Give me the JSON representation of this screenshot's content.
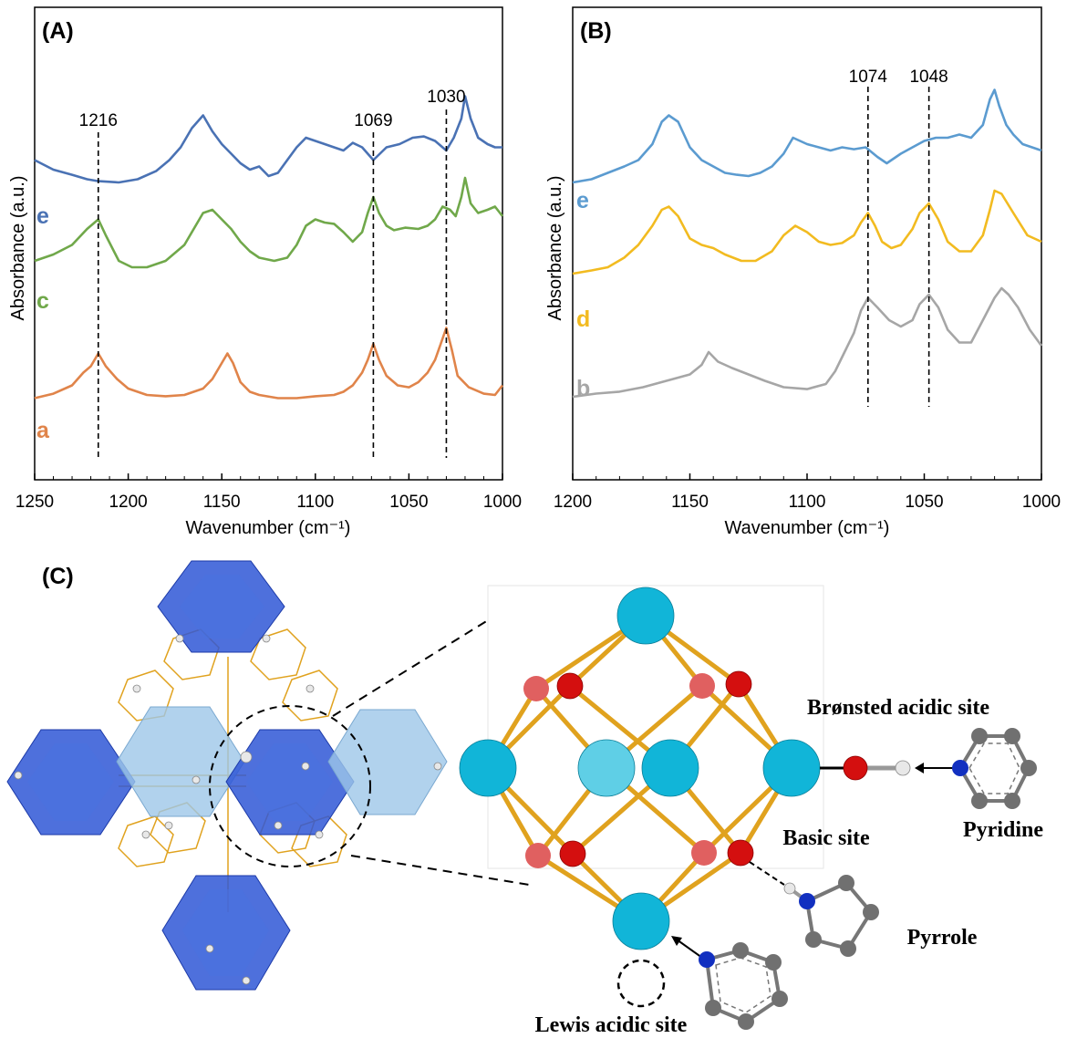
{
  "chart_data": [
    {
      "panel": "(A)",
      "type": "line",
      "xlabel": "Wavenumber (cm⁻¹)",
      "ylabel": "Absorbance (a.u.)",
      "xlim": [
        1250,
        1000
      ],
      "xticks": [
        "1250",
        "1200",
        "1150",
        "1100",
        "1050",
        "1000"
      ],
      "markers": [
        {
          "x": 1216,
          "label": "1216"
        },
        {
          "x": 1069,
          "label": "1069"
        },
        {
          "x": 1030,
          "label": "1030"
        }
      ],
      "series": [
        {
          "name": "e",
          "color": "#4a72b4",
          "offset": 2.6,
          "x": [
            1250,
            1240,
            1230,
            1222,
            1216,
            1205,
            1195,
            1185,
            1178,
            1172,
            1166,
            1160,
            1155,
            1150,
            1145,
            1140,
            1135,
            1130,
            1125,
            1120,
            1115,
            1110,
            1105,
            1100,
            1095,
            1090,
            1085,
            1080,
            1075,
            1069,
            1062,
            1055,
            1048,
            1042,
            1036,
            1030,
            1026,
            1022,
            1020,
            1017,
            1013,
            1008,
            1004,
            1000
          ],
          "values": [
            0.35,
            0.2,
            0.12,
            0.05,
            0.02,
            0.0,
            0.05,
            0.18,
            0.35,
            0.55,
            0.85,
            1.05,
            0.8,
            0.6,
            0.45,
            0.3,
            0.2,
            0.25,
            0.1,
            0.15,
            0.35,
            0.55,
            0.7,
            0.65,
            0.6,
            0.55,
            0.5,
            0.62,
            0.55,
            0.35,
            0.55,
            0.6,
            0.7,
            0.72,
            0.65,
            0.5,
            0.7,
            1.0,
            1.35,
            1.0,
            0.7,
            0.6,
            0.55,
            0.55
          ]
        },
        {
          "name": "c",
          "color": "#70a84a",
          "offset": 1.35,
          "x": [
            1250,
            1240,
            1230,
            1222,
            1216,
            1212,
            1205,
            1198,
            1190,
            1180,
            1170,
            1160,
            1155,
            1150,
            1145,
            1140,
            1135,
            1130,
            1122,
            1115,
            1110,
            1105,
            1100,
            1095,
            1090,
            1085,
            1080,
            1075,
            1072,
            1069,
            1066,
            1062,
            1058,
            1052,
            1045,
            1040,
            1036,
            1032,
            1028,
            1025,
            1022,
            1020,
            1017,
            1013,
            1008,
            1004,
            1000
          ],
          "values": [
            0.2,
            0.3,
            0.45,
            0.7,
            0.85,
            0.6,
            0.2,
            0.1,
            0.1,
            0.2,
            0.45,
            0.95,
            1.0,
            0.85,
            0.7,
            0.5,
            0.35,
            0.25,
            0.2,
            0.25,
            0.45,
            0.75,
            0.85,
            0.8,
            0.78,
            0.65,
            0.5,
            0.65,
            0.95,
            1.2,
            0.95,
            0.75,
            0.68,
            0.72,
            0.7,
            0.75,
            0.85,
            1.05,
            1.0,
            0.9,
            1.2,
            1.5,
            1.1,
            0.95,
            1.0,
            1.05,
            0.9
          ]
        },
        {
          "name": "a",
          "color": "#e0844a",
          "offset": 0.0,
          "x": [
            1250,
            1240,
            1230,
            1224,
            1220,
            1216,
            1212,
            1206,
            1200,
            1190,
            1180,
            1170,
            1160,
            1155,
            1150,
            1147,
            1144,
            1140,
            1135,
            1130,
            1120,
            1110,
            1100,
            1090,
            1085,
            1080,
            1075,
            1072,
            1069,
            1066,
            1062,
            1056,
            1050,
            1045,
            1040,
            1036,
            1033,
            1030,
            1027,
            1024,
            1018,
            1010,
            1004,
            1000
          ],
          "values": [
            0.05,
            0.12,
            0.25,
            0.45,
            0.55,
            0.75,
            0.55,
            0.35,
            0.2,
            0.1,
            0.08,
            0.1,
            0.2,
            0.35,
            0.6,
            0.75,
            0.6,
            0.3,
            0.15,
            0.1,
            0.05,
            0.05,
            0.08,
            0.1,
            0.15,
            0.25,
            0.45,
            0.65,
            0.9,
            0.65,
            0.4,
            0.25,
            0.22,
            0.3,
            0.45,
            0.65,
            0.9,
            1.15,
            0.8,
            0.4,
            0.22,
            0.12,
            0.1,
            0.25
          ]
        }
      ]
    },
    {
      "panel": "(B)",
      "type": "line",
      "xlabel": "Wavenumber (cm⁻¹)",
      "ylabel": "Absorbance (a.u.)",
      "xlim": [
        1200,
        1000
      ],
      "xticks": [
        "1200",
        "1150",
        "1100",
        "1050",
        "1000"
      ],
      "markers": [
        {
          "x": 1074,
          "label": "1074"
        },
        {
          "x": 1048,
          "label": "1048"
        }
      ],
      "series": [
        {
          "name": "e",
          "color": "#5b9bd0",
          "offset": 2.6,
          "x": [
            1200,
            1192,
            1185,
            1178,
            1172,
            1166,
            1162,
            1159,
            1155,
            1150,
            1145,
            1140,
            1135,
            1130,
            1125,
            1120,
            1115,
            1110,
            1106,
            1100,
            1095,
            1090,
            1085,
            1080,
            1075,
            1070,
            1066,
            1060,
            1055,
            1050,
            1045,
            1040,
            1035,
            1030,
            1025,
            1022,
            1020,
            1018,
            1015,
            1012,
            1008,
            1004,
            1000
          ],
          "values": [
            0.0,
            0.05,
            0.15,
            0.25,
            0.35,
            0.6,
            0.95,
            1.05,
            0.95,
            0.55,
            0.35,
            0.25,
            0.15,
            0.12,
            0.1,
            0.15,
            0.25,
            0.45,
            0.7,
            0.6,
            0.55,
            0.5,
            0.55,
            0.52,
            0.55,
            0.4,
            0.3,
            0.45,
            0.55,
            0.65,
            0.7,
            0.7,
            0.75,
            0.7,
            0.9,
            1.3,
            1.45,
            1.2,
            0.9,
            0.75,
            0.6,
            0.55,
            0.5
          ]
        },
        {
          "name": "d",
          "color": "#f2bb20",
          "offset": 1.35,
          "x": [
            1200,
            1192,
            1185,
            1178,
            1172,
            1166,
            1162,
            1159,
            1155,
            1150,
            1145,
            1140,
            1135,
            1128,
            1122,
            1115,
            1110,
            1105,
            1100,
            1095,
            1090,
            1085,
            1080,
            1077,
            1074,
            1071,
            1068,
            1064,
            1060,
            1055,
            1052,
            1048,
            1044,
            1040,
            1035,
            1030,
            1025,
            1022,
            1020,
            1017,
            1012,
            1006,
            1000
          ],
          "values": [
            0.0,
            0.05,
            0.1,
            0.25,
            0.45,
            0.75,
            1.0,
            1.05,
            0.9,
            0.55,
            0.45,
            0.4,
            0.3,
            0.2,
            0.2,
            0.35,
            0.6,
            0.75,
            0.65,
            0.5,
            0.45,
            0.48,
            0.6,
            0.8,
            0.95,
            0.75,
            0.5,
            0.4,
            0.45,
            0.7,
            0.95,
            1.1,
            0.85,
            0.5,
            0.35,
            0.35,
            0.6,
            1.0,
            1.3,
            1.25,
            0.95,
            0.6,
            0.5
          ]
        },
        {
          "name": "b",
          "color": "#a6a6a6",
          "offset": 0.0,
          "x": [
            1200,
            1190,
            1180,
            1170,
            1160,
            1150,
            1145,
            1142,
            1138,
            1132,
            1125,
            1118,
            1110,
            1100,
            1092,
            1088,
            1084,
            1080,
            1077,
            1074,
            1070,
            1065,
            1060,
            1055,
            1052,
            1048,
            1044,
            1040,
            1035,
            1030,
            1025,
            1020,
            1017,
            1014,
            1010,
            1005,
            1000
          ],
          "values": [
            0.0,
            0.05,
            0.08,
            0.15,
            0.25,
            0.35,
            0.5,
            0.7,
            0.55,
            0.45,
            0.35,
            0.25,
            0.15,
            0.12,
            0.2,
            0.4,
            0.7,
            1.0,
            1.35,
            1.55,
            1.4,
            1.2,
            1.1,
            1.2,
            1.45,
            1.6,
            1.4,
            1.05,
            0.85,
            0.85,
            1.2,
            1.55,
            1.7,
            1.6,
            1.4,
            1.05,
            0.8
          ]
        }
      ]
    }
  ],
  "panel_c": {
    "label": "(C)",
    "sites": {
      "bronsted": "Brønsted acidic site",
      "basic": "Basic site",
      "lewis": "Lewis acidic site",
      "pyridine": "Pyridine",
      "pyrrole": "Pyrrole"
    },
    "colors": {
      "zr": "#11b5d8",
      "zr_light": "#5fcfe6",
      "oxygen": "#d40f0f",
      "oxygen_light": "#e06060",
      "bond": "#e0a21e",
      "nitrogen": "#1230c0",
      "carbon": "#707070",
      "hydrogen": "#e8e8e8",
      "cluster_blue": "#2f57d6",
      "cluster_light": "#9ec7e8"
    }
  }
}
